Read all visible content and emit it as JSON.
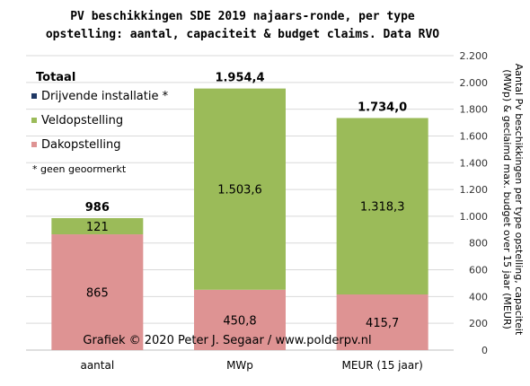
{
  "chart_data": {
    "type": "bar",
    "stacked": true,
    "title_lines": [
      "PV beschikkingen  SDE 2019 najaars-ronde, per type",
      "opstelling: aantal, capaciteit & budget claims. Data RVO"
    ],
    "categories": [
      "aantal",
      "MWp",
      "MEUR (15 jaar)"
    ],
    "series": [
      {
        "name": "Dakopstelling",
        "color": "#de9393",
        "values": [
          865,
          450.8,
          415.7
        ],
        "labels": [
          "865",
          "450,8",
          "415,7"
        ]
      },
      {
        "name": "Veldopstelling",
        "color": "#9bbb59",
        "values": [
          121,
          1503.6,
          1318.3
        ],
        "labels": [
          "121",
          "1.503,6",
          "1.318,3"
        ]
      },
      {
        "name": "Drijvende installatie *",
        "color": "#1f3864",
        "values": [
          0,
          0,
          0
        ],
        "labels": [
          "",
          "",
          ""
        ]
      }
    ],
    "totals": [
      "986",
      "1.954,4",
      "1.734,0"
    ],
    "total_values": [
      986,
      1954.4,
      1734.0
    ],
    "ylim": [
      0,
      2200
    ],
    "y_ticks": [
      0,
      200,
      400,
      600,
      800,
      1000,
      1200,
      1400,
      1600,
      1800,
      2000,
      2200
    ],
    "y_tick_labels": [
      "0",
      "200",
      "400",
      "600",
      "800",
      "1.000",
      "1.200",
      "1.400",
      "1.600",
      "1.800",
      "2.000",
      "2.200"
    ],
    "y_axis_position": "right",
    "ylabel_lines": [
      "Aantal Pv beschikkingen per type opstelling, capaciteit",
      "(MWp) & geclaimd max. budget over 15 jaar (MEUR)"
    ],
    "grid": true,
    "legend": {
      "title": "Totaal",
      "position": "top-left",
      "entries": [
        "Drijvende installatie *",
        "Veldopstelling",
        "Dakopstelling"
      ],
      "note": "* geen geoormerkt"
    },
    "credit": "Grafiek  © 2020  Peter J. Segaar / www.polderpv.nl"
  }
}
